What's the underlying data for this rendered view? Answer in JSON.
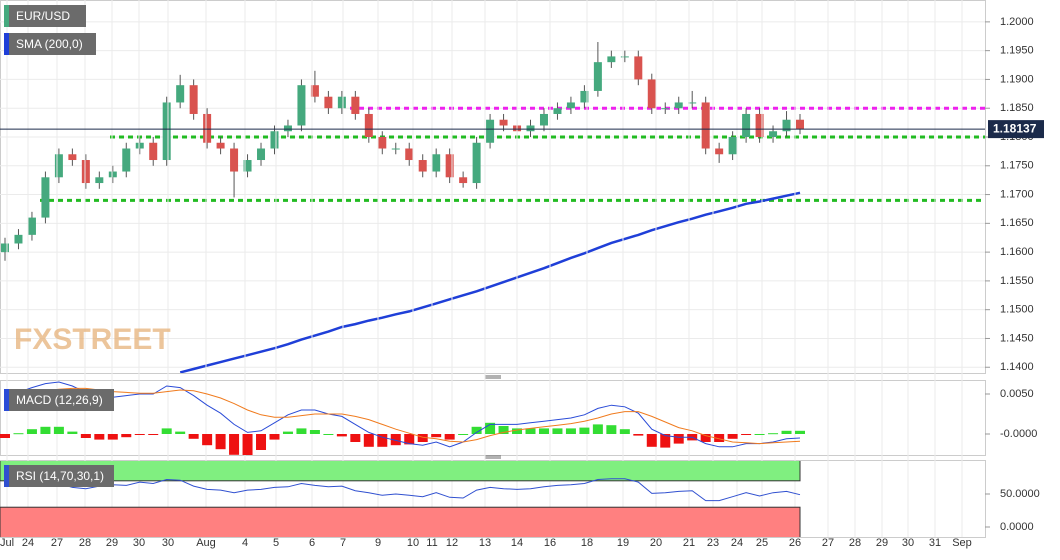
{
  "chart_data": [
    {
      "type": "candlestick",
      "watermark": "FXSTREET",
      "up_color": "#45a97e",
      "down_color": "#d9534f",
      "series": [
        {
          "name": "EUR/USD",
          "open": [
            1.16,
            1.1615,
            1.163,
            1.166,
            1.173,
            1.177,
            1.176,
            1.172,
            1.173,
            1.174,
            1.178,
            1.179,
            1.176,
            1.186,
            1.189,
            1.184,
            1.179,
            1.178,
            1.174,
            1.176,
            1.178,
            1.181,
            1.182,
            1.189,
            1.187,
            1.185,
            1.187,
            1.184,
            1.18,
            1.178,
            1.178,
            1.176,
            1.174,
            1.177,
            1.173,
            1.172,
            1.179,
            1.183,
            1.182,
            1.181,
            1.182,
            1.184,
            1.185,
            1.186,
            1.188,
            1.193,
            1.194,
            1.194,
            1.19,
            1.185,
            1.185,
            1.186,
            1.186,
            1.178,
            1.177,
            1.18,
            1.184,
            1.18,
            1.181,
            1.183
          ],
          "high": [
            1.1625,
            1.164,
            1.167,
            1.174,
            1.178,
            1.178,
            1.177,
            1.174,
            1.175,
            1.179,
            1.18,
            1.18,
            1.187,
            1.1908,
            1.19,
            1.185,
            1.18,
            1.179,
            1.177,
            1.179,
            1.182,
            1.183,
            1.19,
            1.1915,
            1.188,
            1.188,
            1.188,
            1.185,
            1.181,
            1.179,
            1.179,
            1.177,
            1.178,
            1.178,
            1.174,
            1.18,
            1.184,
            1.184,
            1.183,
            1.183,
            1.185,
            1.186,
            1.187,
            1.189,
            1.1965,
            1.195,
            1.195,
            1.195,
            1.191,
            1.186,
            1.187,
            1.188,
            1.187,
            1.179,
            1.181,
            1.185,
            1.185,
            1.182,
            1.1845,
            1.184
          ],
          "low": [
            1.1585,
            1.1605,
            1.162,
            1.165,
            1.172,
            1.175,
            1.171,
            1.171,
            1.172,
            1.173,
            1.177,
            1.175,
            1.175,
            1.185,
            1.183,
            1.178,
            1.177,
            1.1695,
            1.173,
            1.175,
            1.177,
            1.18,
            1.181,
            1.186,
            1.184,
            1.184,
            1.183,
            1.179,
            1.177,
            1.177,
            1.175,
            1.173,
            1.173,
            1.172,
            1.1712,
            1.171,
            1.178,
            1.181,
            1.18,
            1.18,
            1.181,
            1.183,
            1.184,
            1.185,
            1.187,
            1.192,
            1.193,
            1.189,
            1.184,
            1.184,
            1.184,
            1.185,
            1.177,
            1.1755,
            1.176,
            1.179,
            1.179,
            1.179,
            1.18,
            1.1805
          ],
          "close": [
            1.1615,
            1.163,
            1.166,
            1.173,
            1.177,
            1.176,
            1.172,
            1.173,
            1.174,
            1.178,
            1.179,
            1.176,
            1.186,
            1.189,
            1.184,
            1.179,
            1.178,
            1.174,
            1.176,
            1.178,
            1.181,
            1.182,
            1.189,
            1.187,
            1.185,
            1.187,
            1.184,
            1.18,
            1.178,
            1.178,
            1.176,
            1.174,
            1.177,
            1.173,
            1.172,
            1.179,
            1.183,
            1.182,
            1.181,
            1.182,
            1.184,
            1.185,
            1.186,
            1.188,
            1.193,
            1.194,
            1.194,
            1.19,
            1.185,
            1.185,
            1.186,
            1.186,
            1.178,
            1.177,
            1.18,
            1.184,
            1.18,
            1.181,
            1.183,
            1.1814
          ],
          "color": "#45a97e"
        },
        {
          "name": "SMA (200,0)",
          "color": "#1f3fd8",
          "values": [
            null,
            null,
            null,
            null,
            null,
            null,
            null,
            null,
            null,
            null,
            null,
            null,
            null,
            1.1391,
            1.1397,
            1.1403,
            1.1409,
            1.1415,
            1.1421,
            1.1427,
            1.1433,
            1.144,
            1.1448,
            1.1455,
            1.1462,
            1.147,
            1.1475,
            1.1481,
            1.1486,
            1.1492,
            1.1497,
            1.1504,
            1.1511,
            1.1518,
            1.1525,
            1.1532,
            1.154,
            1.1548,
            1.1556,
            1.1564,
            1.1572,
            1.1581,
            1.159,
            1.1598,
            1.1607,
            1.1616,
            1.1623,
            1.163,
            1.1638,
            1.1645,
            1.1652,
            1.1658,
            1.1665,
            1.1671,
            1.1677,
            1.1684,
            1.1688,
            1.1693,
            1.1698,
            1.1703
          ]
        }
      ],
      "hlines": [
        {
          "value": 1.185,
          "color": "#ee22ee"
        },
        {
          "value": 1.18,
          "color": "#22bb22"
        },
        {
          "value": 1.169,
          "color": "#22bb22"
        }
      ],
      "last_price": 1.18137,
      "ylim": [
        1.139,
        1.2038
      ],
      "yticks": [
        {
          "value": 1.2,
          "label": "1.2000"
        },
        {
          "value": 1.195,
          "label": "1.1950"
        },
        {
          "value": 1.19,
          "label": "1.1900"
        },
        {
          "value": 1.185,
          "label": "1.1850"
        },
        {
          "value": 1.18,
          "label": "1.1800"
        },
        {
          "value": 1.175,
          "label": "1.1750"
        },
        {
          "value": 1.17,
          "label": "1.1700"
        },
        {
          "value": 1.165,
          "label": "1.1650"
        },
        {
          "value": 1.16,
          "label": "1.1600"
        },
        {
          "value": 1.155,
          "label": "1.1550"
        },
        {
          "value": 1.15,
          "label": "1.1500"
        },
        {
          "value": 1.145,
          "label": "1.1450"
        },
        {
          "value": 1.14,
          "label": "1.1400"
        }
      ],
      "x_labels": [
        "Jul",
        "24",
        "27",
        "28",
        "29",
        "30",
        "30",
        "Aug",
        "4",
        "5",
        "6",
        "7",
        "9",
        "10",
        "11",
        "12",
        "13",
        "14",
        "16",
        "18",
        "19",
        "20",
        "21",
        "23",
        "24",
        "25",
        "26",
        "27",
        "28",
        "29",
        "30",
        "31",
        "Sep"
      ],
      "grid": true
    },
    {
      "type": "macd",
      "title": "MACD (12,26,9)",
      "series": [
        {
          "color": "#2a4bd7",
          "values": [
            0.0045,
            0.0052,
            0.0058,
            0.0063,
            0.0065,
            0.006,
            0.0052,
            0.0048,
            0.0046,
            0.0048,
            0.005,
            0.005,
            0.006,
            0.0058,
            0.0048,
            0.0036,
            0.0026,
            0.0012,
            0.0002,
            0.0004,
            0.0014,
            0.0024,
            0.003,
            0.003,
            0.0025,
            0.0022,
            0.0012,
            0.0002,
            -0.0004,
            -0.0008,
            -0.0012,
            -0.0014,
            -0.001,
            -0.0016,
            -0.001,
            0.0002,
            0.0012,
            0.0012,
            0.0012,
            0.0014,
            0.0016,
            0.0018,
            0.002,
            0.0024,
            0.0032,
            0.0036,
            0.0034,
            0.0026,
            0.0006,
            -0.0002,
            -0.0004,
            -0.0004,
            -0.0012,
            -0.0016,
            -0.0016,
            -0.0012,
            -0.0012,
            -0.001,
            -0.0006,
            -0.0005
          ]
        },
        {
          "color": "#f07b1e",
          "values": [
            0.005,
            0.0051,
            0.0052,
            0.0054,
            0.0056,
            0.0057,
            0.0057,
            0.0055,
            0.0053,
            0.0052,
            0.0051,
            0.0051,
            0.0053,
            0.0055,
            0.0054,
            0.005,
            0.0045,
            0.0038,
            0.003,
            0.0024,
            0.0021,
            0.0021,
            0.0023,
            0.0025,
            0.0025,
            0.0025,
            0.0022,
            0.0018,
            0.0012,
            0.0006,
            0.0001,
            -0.0004,
            -0.0006,
            -0.0009,
            -0.001,
            -0.0007,
            -0.0002,
            0.0002,
            0.0005,
            0.0007,
            0.0009,
            0.0011,
            0.0013,
            0.0016,
            0.002,
            0.0025,
            0.0028,
            0.0028,
            0.0022,
            0.0015,
            0.0008,
            0.0004,
            -0.0002,
            -0.0006,
            -0.001,
            -0.0011,
            -0.0012,
            -0.0011,
            -0.001,
            -0.0009
          ]
        }
      ],
      "histogram": {
        "up_color": "#33dd33",
        "down_color": "#ee1111",
        "values": [
          -0.0005,
          0.0001,
          0.0006,
          0.0009,
          0.0009,
          0.0003,
          -0.0005,
          -0.0007,
          -0.0007,
          -0.0004,
          -0.0001,
          -0.0001,
          0.0007,
          0.0003,
          -0.0006,
          -0.0014,
          -0.0019,
          -0.0026,
          -0.0028,
          -0.002,
          -0.0007,
          0.0003,
          0.0007,
          0.0005,
          0.0,
          -0.0003,
          -0.001,
          -0.0016,
          -0.0016,
          -0.0014,
          -0.0013,
          -0.001,
          -0.0004,
          -0.0007,
          0.0,
          0.0009,
          0.0014,
          0.001,
          0.0007,
          0.0007,
          0.0007,
          0.0007,
          0.0007,
          0.0008,
          0.0012,
          0.0011,
          0.0006,
          -0.0002,
          -0.0016,
          -0.0017,
          -0.0012,
          -0.0008,
          -0.001,
          -0.001,
          -0.0006,
          -0.0001,
          0.0,
          0.0001,
          0.0004,
          0.0004
        ]
      },
      "ylim": [
        -0.002375,
        0.006375
      ],
      "yticks": [
        {
          "value": 0.005,
          "label": "0.0050"
        },
        {
          "value": 0,
          "label": "-0.0000"
        }
      ]
    },
    {
      "type": "line",
      "title": "RSI (14,70,30,1)",
      "overbought": 70,
      "oversold": 30,
      "overbought_color": "#80ef80",
      "oversold_color": "#ff8080",
      "series": [
        {
          "color": "#3050d0",
          "values": [
            62,
            65,
            68,
            70,
            66,
            60,
            58,
            62,
            64,
            63,
            68,
            66,
            72,
            71,
            62,
            57,
            56,
            52,
            56,
            57,
            60,
            61,
            66,
            63,
            61,
            62,
            55,
            52,
            48,
            50,
            48,
            46,
            52,
            45,
            44,
            56,
            60,
            58,
            57,
            58,
            61,
            63,
            64,
            66,
            72,
            73,
            73,
            68,
            51,
            52,
            54,
            55,
            40,
            40,
            46,
            52,
            47,
            52,
            54,
            49
          ]
        }
      ],
      "ylim": [
        -12.1,
        98.5
      ],
      "yticks": [
        {
          "value": 50,
          "label": "50.0000"
        },
        {
          "value": 0,
          "label": "0.0000"
        }
      ]
    }
  ]
}
